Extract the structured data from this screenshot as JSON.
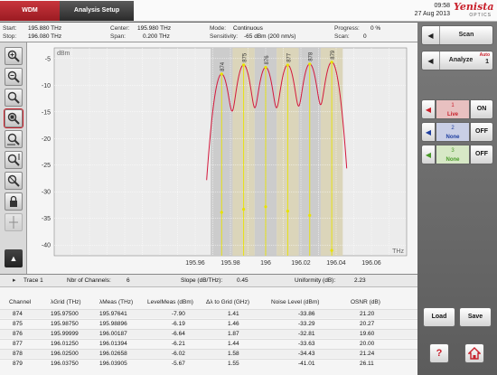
{
  "tabs": [
    {
      "label": "WDM"
    },
    {
      "label": "Analysis Setup"
    }
  ],
  "clock": {
    "time": "09:58",
    "date": "27 Aug 2013"
  },
  "logo": {
    "brand": "Yenista",
    "sub": "OPTICS"
  },
  "info": {
    "start_label": "Start:",
    "start_value": "195.880 THz",
    "stop_label": "Stop:",
    "stop_value": "196.080 THz",
    "center_label": "Center:",
    "center_value": "195.980 THz",
    "span_label": "Span:",
    "span_value": "0.200 THz",
    "mode_label": "Mode:",
    "mode_value": "Continuous",
    "sens_label": "Sensitivity:",
    "sens_value": "-65 dBm (200 nm/s)",
    "progress_label": "Progress:",
    "progress_value": "0 %",
    "scan_label": "Scan:",
    "scan_value": "0"
  },
  "chart_data": {
    "type": "line",
    "ylabel": "dBm",
    "xlabel": "THz",
    "xlim": [
      195.88,
      196.08
    ],
    "ylim": [
      -42,
      -3
    ],
    "x_ticks": [
      "195.96",
      "195.98",
      "196",
      "196.02",
      "196.04",
      "196.06"
    ],
    "x_tick_values": [
      195.96,
      195.98,
      196.0,
      196.02,
      196.04,
      196.06
    ],
    "y_ticks": [
      "-5",
      "-10",
      "-15",
      "-20",
      "-25",
      "-30",
      "-35",
      "-40"
    ],
    "y_tick_values": [
      -5,
      -10,
      -15,
      -20,
      -25,
      -30,
      -35,
      -40
    ],
    "grid": true,
    "series_color": "#d4183c",
    "marker_color": "#e8e200",
    "peaks": [
      {
        "label": "874",
        "freq": 195.975,
        "level": -7.9,
        "noise": -33.86
      },
      {
        "label": "875",
        "freq": 195.9875,
        "level": -6.19,
        "noise": -33.29
      },
      {
        "label": "876",
        "freq": 196.0,
        "level": -6.64,
        "noise": -32.81
      },
      {
        "label": "877",
        "freq": 196.0125,
        "level": -6.21,
        "noise": -33.63
      },
      {
        "label": "878",
        "freq": 196.025,
        "level": -6.02,
        "noise": -34.43
      },
      {
        "label": "879",
        "freq": 196.0375,
        "level": -5.67,
        "noise": -41.01
      }
    ]
  },
  "summary": {
    "trace": "Trace 1",
    "channels_label": "Nbr of Channels:",
    "channels_value": "6",
    "slope_label": "Slope (dB/THz):",
    "slope_value": "0.45",
    "uniformity_label": "Uniformity (dB):",
    "uniformity_value": "2.23"
  },
  "table": {
    "headers": [
      "Channel",
      "λGrid (THz)",
      "λMeas (THz)",
      "LevelMeas (dBm)",
      "Δλ to Grid (GHz)",
      "Noise Level (dBm)",
      "OSNR (dB)"
    ],
    "rows": [
      [
        "874",
        "195.97500",
        "195.97641",
        "-7.90",
        "1.41",
        "-33.86",
        "21.20"
      ],
      [
        "875",
        "195.98750",
        "195.98896",
        "-6.19",
        "1.46",
        "-33.29",
        "20.27"
      ],
      [
        "876",
        "195.99999",
        "196.00187",
        "-6.64",
        "1.87",
        "-32.81",
        "19.60"
      ],
      [
        "877",
        "196.01250",
        "196.01394",
        "-6.21",
        "1.44",
        "-33.63",
        "20.00"
      ],
      [
        "878",
        "196.02500",
        "196.02658",
        "-6.02",
        "1.58",
        "-34.43",
        "21.24"
      ],
      [
        "879",
        "196.03750",
        "196.03905",
        "-5.67",
        "1.55",
        "-41.01",
        "26.11"
      ]
    ]
  },
  "right": {
    "scan_label": "Scan",
    "analyze_label": "Analyze",
    "analyze_badge": "Auto",
    "analyze_num": "1",
    "trace1_num": "1",
    "trace1_name": "Live",
    "trace1_state": "ON",
    "trace2_num": "2",
    "trace2_name": "None",
    "trace2_state": "OFF",
    "trace3_num": "3",
    "trace3_name": "None",
    "trace3_state": "OFF",
    "load_label": "Load",
    "save_label": "Save",
    "help_label": "?"
  }
}
